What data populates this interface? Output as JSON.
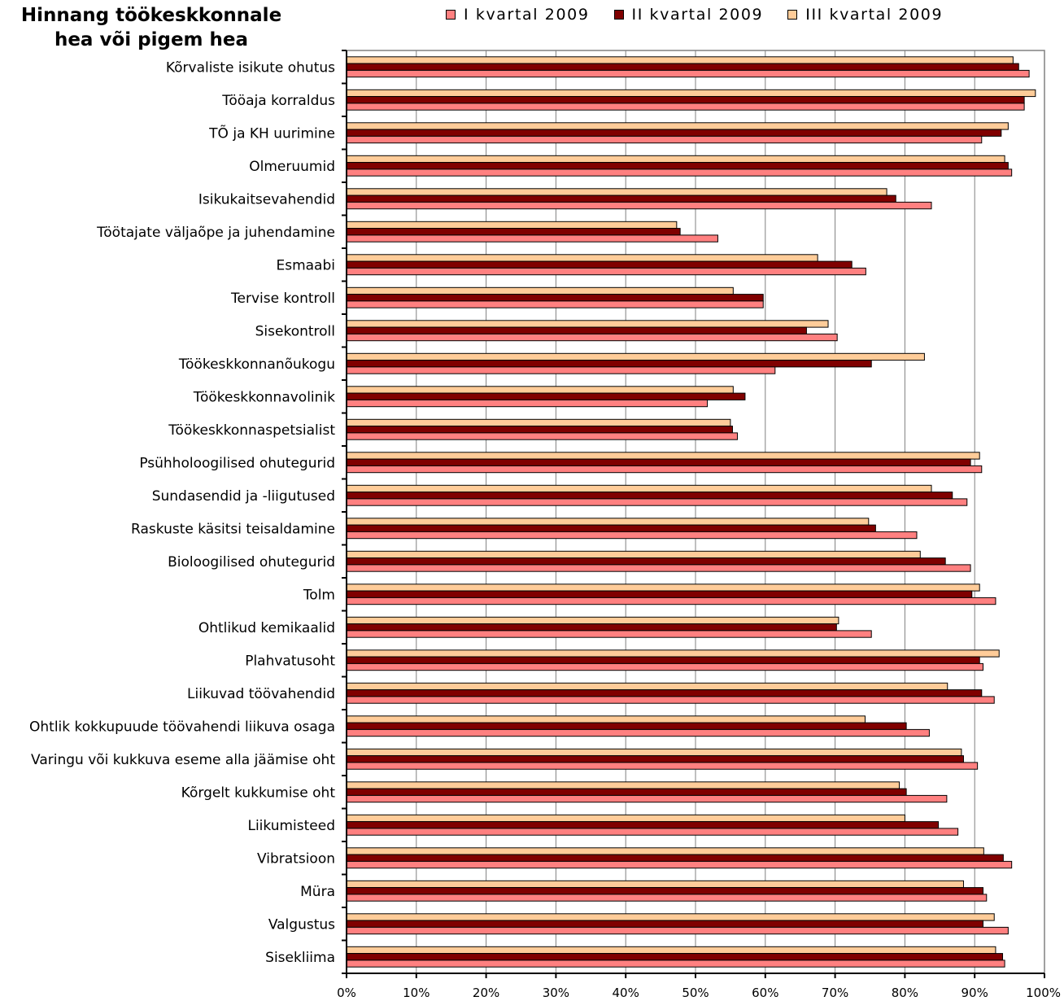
{
  "chart_data": {
    "type": "bar",
    "orientation": "horizontal",
    "title_lines": [
      "Hinnang töökeskkonnale",
      "hea või pigem hea"
    ],
    "xlim": [
      0,
      100
    ],
    "x_ticks": [
      "0%",
      "10%",
      "20%",
      "30%",
      "40%",
      "50%",
      "60%",
      "70%",
      "80%",
      "90%",
      "100%"
    ],
    "grid": "vertical",
    "legend_position": "top",
    "categories": [
      "Kõrvaliste isikute ohutus",
      "Tööaja korraldus",
      "TÕ ja KH uurimine",
      "Olmeruumid",
      "Isikukaitsevahendid",
      "Töötajate väljaõpe ja juhendamine",
      "Esmaabi",
      "Tervise kontroll",
      "Sisekontroll",
      "Töökeskkonnanõukogu",
      "Töökeskkonnavolinik",
      "Töökeskkonnaspetsialist",
      "Psühholoogilised ohutegurid",
      "Sundasendid ja -liigutused",
      "Raskuste käsitsi teisaldamine",
      "Bioloogilised ohutegurid",
      "Tolm",
      "Ohtlikud kemikaalid",
      "Plahvatusoht",
      "Liikuvad töövahendid",
      "Ohtlik kokkupuude töövahendi liikuva osaga",
      "Varingu või kukkuva eseme alla jäämise oht",
      "Kõrgelt kukkumise oht",
      "Liikumisteed",
      "Vibratsioon",
      "Müra",
      "Valgustus",
      "Sisekliima"
    ],
    "series": [
      {
        "name": "III kvartal 2009",
        "color": "#FFCC99",
        "values": [
          95.5,
          98.7,
          94.8,
          94.3,
          77.4,
          47.3,
          67.5,
          55.4,
          69.0,
          82.8,
          55.4,
          55.0,
          90.7,
          83.8,
          74.8,
          82.2,
          90.7,
          70.5,
          93.5,
          86.1,
          74.3,
          88.1,
          79.2,
          80.0,
          91.3,
          88.4,
          92.8,
          93.0
        ]
      },
      {
        "name": "II kvartal 2009",
        "color": "#800000",
        "values": [
          96.3,
          97.1,
          93.8,
          94.8,
          78.7,
          47.8,
          72.4,
          59.7,
          65.9,
          75.2,
          57.1,
          55.3,
          89.4,
          86.8,
          75.8,
          85.8,
          89.6,
          70.2,
          90.7,
          91.0,
          80.2,
          88.4,
          80.2,
          84.8,
          94.1,
          91.2,
          91.2,
          94.0
        ]
      },
      {
        "name": "I kvartal 2009",
        "color": "#FF8080",
        "values": [
          97.8,
          97.1,
          91.0,
          95.3,
          83.8,
          53.2,
          74.4,
          59.7,
          70.3,
          61.4,
          51.7,
          56.0,
          91.0,
          88.9,
          81.7,
          89.4,
          93.0,
          75.2,
          91.2,
          92.8,
          83.5,
          90.4,
          86.0,
          87.6,
          95.3,
          91.7,
          94.8,
          94.3
        ]
      }
    ],
    "legend": [
      {
        "label": "I kvartal 2009",
        "color": "#FF8080"
      },
      {
        "label": "II kvartal 2009",
        "color": "#800000"
      },
      {
        "label": "III kvartal 2009",
        "color": "#FFCC99"
      }
    ]
  }
}
